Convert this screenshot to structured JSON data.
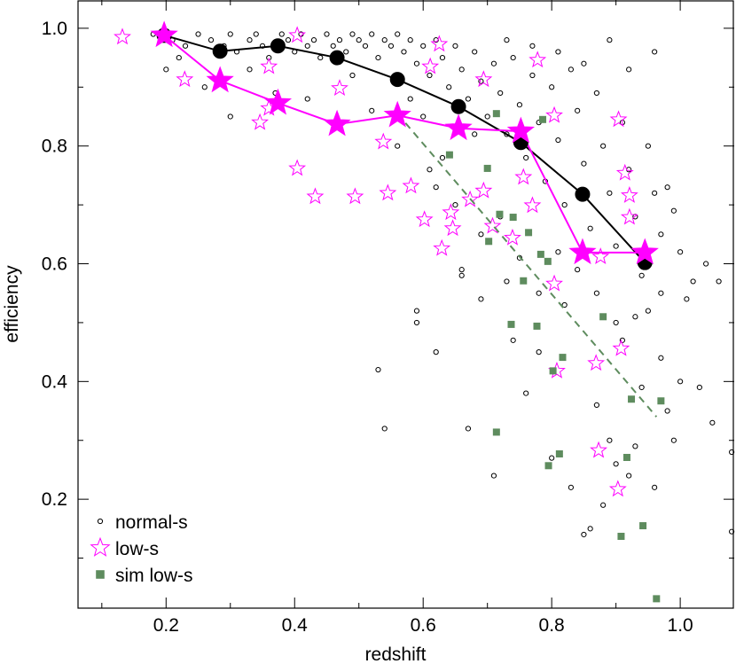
{
  "chart_data": {
    "type": "scatter",
    "xlabel": "redshift",
    "ylabel": "efficiency",
    "xlim": [
      0.063,
      1.084
    ],
    "ylim": [
      0.015,
      1.048
    ],
    "xticks": [
      0.2,
      0.4,
      0.6,
      0.8,
      {
        "value": 1,
        "label": "1.0"
      }
    ],
    "yticks": [
      0.2,
      0.4,
      0.6,
      0.8,
      {
        "value": 1,
        "label": "1.0"
      }
    ],
    "legend": "lower left",
    "series": [
      {
        "name": "normal-s",
        "color": "#000000",
        "marker": "circle",
        "x": [
          0.18,
          0.21,
          0.23,
          0.22,
          0.25,
          0.27,
          0.29,
          0.3,
          0.31,
          0.33,
          0.34,
          0.35,
          0.36,
          0.38,
          0.39,
          0.4,
          0.41,
          0.42,
          0.43,
          0.44,
          0.45,
          0.46,
          0.47,
          0.48,
          0.49,
          0.5,
          0.51,
          0.52,
          0.53,
          0.54,
          0.55,
          0.56,
          0.57,
          0.58,
          0.59,
          0.6,
          0.61,
          0.62,
          0.63,
          0.64,
          0.65,
          0.66,
          0.67,
          0.68,
          0.69,
          0.7,
          0.71,
          0.72,
          0.73,
          0.74,
          0.75,
          0.76,
          0.77,
          0.78,
          0.79,
          0.8,
          0.81,
          0.82,
          0.83,
          0.84,
          0.85,
          0.86,
          0.87,
          0.88,
          0.89,
          0.9,
          0.91,
          0.92,
          0.93,
          0.94,
          0.95,
          0.96,
          0.97,
          0.98,
          0.99,
          1.0,
          1.02,
          1.04,
          1.06,
          1.03,
          1.0,
          1.05,
          1.08,
          1.08,
          0.54,
          0.53,
          0.59,
          0.59,
          0.62,
          0.66,
          0.67,
          0.69,
          0.71,
          0.73,
          0.74,
          0.76,
          0.78,
          0.8,
          0.82,
          0.83,
          0.85,
          0.86,
          0.87,
          0.88,
          0.89,
          0.9,
          0.91,
          0.92,
          0.93,
          0.94,
          0.95,
          0.96,
          0.97,
          0.98,
          0.99,
          1.01,
          0.97,
          0.69,
          0.72,
          0.75,
          0.78,
          0.81,
          0.84,
          0.87,
          0.9,
          0.93,
          0.63,
          0.6,
          0.58,
          0.56,
          0.61,
          0.65,
          0.68,
          0.92,
          0.96,
          0.89,
          0.85,
          0.81,
          0.77,
          0.73,
          0.2,
          0.26,
          0.3,
          0.33,
          0.37,
          0.42,
          0.49,
          0.52,
          0.66,
          0.62
        ],
        "y": [
          0.99,
          0.98,
          0.97,
          0.95,
          0.99,
          0.98,
          0.97,
          0.99,
          0.96,
          0.98,
          0.99,
          0.97,
          0.95,
          0.99,
          0.98,
          0.96,
          0.99,
          0.97,
          0.98,
          0.95,
          0.99,
          0.97,
          0.98,
          0.96,
          0.99,
          0.98,
          0.97,
          0.99,
          0.95,
          0.98,
          0.97,
          0.99,
          0.96,
          0.98,
          0.94,
          0.97,
          0.92,
          0.98,
          0.95,
          0.9,
          0.97,
          0.93,
          0.88,
          0.96,
          0.91,
          0.85,
          0.94,
          0.89,
          0.82,
          0.95,
          0.87,
          0.78,
          0.92,
          0.84,
          0.74,
          0.9,
          0.81,
          0.7,
          0.93,
          0.86,
          0.77,
          0.66,
          0.89,
          0.8,
          0.72,
          0.63,
          0.84,
          0.76,
          0.68,
          0.58,
          0.8,
          0.72,
          0.65,
          0.73,
          0.69,
          0.62,
          0.57,
          0.6,
          0.57,
          0.39,
          0.4,
          0.33,
          0.28,
          0.145,
          0.32,
          0.42,
          0.52,
          0.5,
          0.45,
          0.59,
          0.32,
          0.54,
          0.24,
          0.57,
          0.47,
          0.38,
          0.45,
          0.27,
          0.53,
          0.22,
          0.14,
          0.15,
          0.36,
          0.19,
          0.3,
          0.26,
          0.47,
          0.24,
          0.29,
          0.39,
          0.52,
          0.22,
          0.44,
          0.35,
          0.3,
          0.54,
          0.55,
          0.65,
          0.68,
          0.61,
          0.55,
          0.62,
          0.59,
          0.55,
          0.5,
          0.51,
          0.78,
          0.85,
          0.88,
          0.8,
          0.76,
          0.7,
          0.82,
          0.93,
          0.96,
          0.98,
          0.94,
          0.96,
          0.97,
          0.98,
          0.93,
          0.9,
          0.85,
          0.93,
          0.89,
          0.88,
          0.92,
          0.86,
          0.58,
          0.73
        ]
      },
      {
        "name": "low-s",
        "color": "#ff00ff",
        "marker": "star",
        "x": [
          0.132,
          0.229,
          0.36,
          0.346,
          0.36,
          0.404,
          0.432,
          0.494,
          0.545,
          0.581,
          0.538,
          0.47,
          0.602,
          0.643,
          0.646,
          0.629,
          0.673,
          0.694,
          0.708,
          0.739,
          0.77,
          0.804,
          0.808,
          0.804,
          0.778,
          0.869,
          0.873,
          0.903,
          0.908,
          0.914,
          0.921,
          0.904,
          0.921,
          0.876,
          0.756,
          0.694,
          0.625,
          0.404,
          0.611
        ],
        "y": [
          0.985,
          0.913,
          0.864,
          0.84,
          0.935,
          0.762,
          0.714,
          0.714,
          0.72,
          0.732,
          0.807,
          0.898,
          0.675,
          0.687,
          0.66,
          0.626,
          0.709,
          0.724,
          0.664,
          0.644,
          0.699,
          0.566,
          0.418,
          0.852,
          0.946,
          0.431,
          0.283,
          0.217,
          0.456,
          0.754,
          0.716,
          0.845,
          0.679,
          0.612,
          0.747,
          0.913,
          0.973,
          0.988,
          0.935
        ]
      },
      {
        "name": "sim low-s",
        "color": "#5e8c5e",
        "marker": "square",
        "x": [
          0.641,
          0.7,
          0.714,
          0.786,
          0.719,
          0.74,
          0.702,
          0.764,
          0.783,
          0.794,
          0.756,
          0.737,
          0.777,
          0.817,
          0.802,
          0.714,
          0.812,
          0.795,
          0.88,
          0.924,
          0.97,
          0.917,
          0.908,
          0.942,
          0.963,
          0.85
        ],
        "y": [
          0.785,
          0.762,
          0.855,
          0.845,
          0.684,
          0.679,
          0.638,
          0.653,
          0.616,
          0.604,
          0.571,
          0.497,
          0.494,
          0.441,
          0.418,
          0.314,
          0.277,
          0.257,
          0.51,
          0.37,
          0.367,
          0.271,
          0.137,
          0.155,
          0.031,
          0.714
        ]
      }
    ],
    "lines": [
      {
        "color": "#000000",
        "marker": "circle",
        "dashed": false,
        "x": [
          0.197,
          0.284,
          0.374,
          0.466,
          0.56,
          0.655,
          0.752,
          0.848,
          0.945
        ],
        "y": [
          0.988,
          0.961,
          0.97,
          0.95,
          0.913,
          0.867,
          0.806,
          0.718,
          0.602
        ]
      },
      {
        "color": "#ff00ff",
        "marker": "star",
        "dashed": false,
        "x": [
          0.197,
          0.284,
          0.374,
          0.466,
          0.56,
          0.655,
          0.752,
          0.848,
          0.945
        ],
        "y": [
          0.988,
          0.911,
          0.873,
          0.837,
          0.852,
          0.83,
          0.825,
          0.619,
          0.619
        ]
      },
      {
        "color": "#5e8c5e",
        "marker": "none",
        "dashed": true,
        "x": [
          0.56,
          0.963
        ],
        "y": [
          0.855,
          0.34
        ]
      }
    ]
  }
}
